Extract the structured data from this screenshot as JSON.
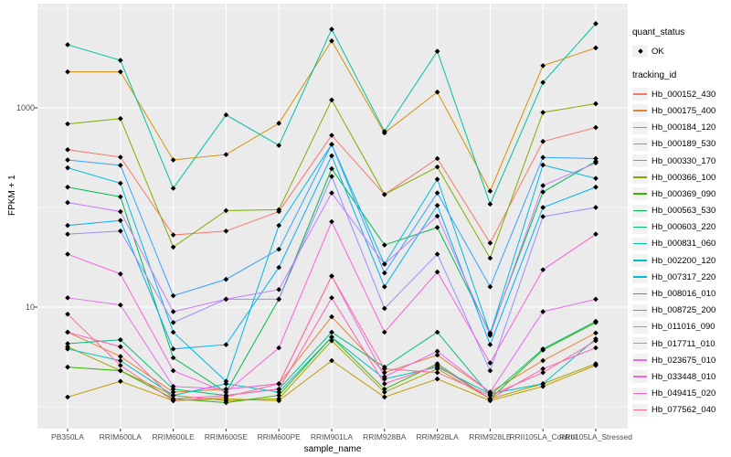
{
  "figure": {
    "background": "#ffffff",
    "panel_background": "#ebebeb",
    "gridline_color": "#ffffff",
    "point_color": "#000000"
  },
  "legend": {
    "quant_status_title": "quant_status",
    "quant_status_items": [
      {
        "label": "OK",
        "symbol": "point"
      }
    ],
    "tracking_title": "tracking_id"
  },
  "chart_data": {
    "type": "line",
    "title": "",
    "xlabel": "sample_name",
    "ylabel": "FPKM + 1",
    "y_scale": "log10",
    "grid": "on",
    "legend_position": "right",
    "y_ticks": [
      {
        "label": "10",
        "value": 10
      },
      {
        "label": "1000",
        "value": 1000
      }
    ],
    "y_minor_gridlines": [
      1,
      100,
      10000
    ],
    "ylim": [
      0.5,
      11000
    ],
    "categories": [
      "PB350LA",
      "RRIM600LA",
      "RRIM600LE",
      "RRIM600SE",
      "RRIM600PE",
      "RRIM901LA",
      "RRIM928BA",
      "RRIM928LA",
      "RRIM928LE",
      "RRII105LA_Control",
      "RRII105LA_Stressed"
    ],
    "series": [
      {
        "name": "Hb_000152_430",
        "color": "#F8766D",
        "values": [
          380,
          320,
          53,
          58,
          91,
          530,
          135,
          310,
          44,
          460,
          635
        ]
      },
      {
        "name": "Hb_000175_400",
        "color": "#EA8331",
        "values": [
          5.6,
          3.2,
          1.4,
          1.5,
          1.7,
          8.0,
          2.2,
          3.3,
          1.4,
          2.9,
          5.5
        ]
      },
      {
        "name": "Hb_000184_120",
        "color": "#D89000",
        "values": [
          2300,
          2300,
          300,
          340,
          700,
          4700,
          560,
          1440,
          146,
          2650,
          4000
        ]
      },
      {
        "name": "Hb_000189_530",
        "color": "#C09B00",
        "values": [
          1.25,
          1.8,
          1.15,
          1.2,
          1.15,
          2.9,
          1.25,
          1.9,
          1.15,
          1.6,
          2.6
        ]
      },
      {
        "name": "Hb_000330_170",
        "color": "#A3A500",
        "values": [
          4.0,
          2.3,
          1.3,
          1.15,
          1.2,
          4.6,
          1.4,
          2.4,
          1.2,
          1.7,
          2.7
        ]
      },
      {
        "name": "Hb_000366_100",
        "color": "#7CAE00",
        "values": [
          690,
          780,
          40,
          93,
          95,
          1200,
          135,
          255,
          31,
          900,
          1100
        ]
      },
      {
        "name": "Hb_000369_090",
        "color": "#39B600",
        "values": [
          2.5,
          2.3,
          1.2,
          1.1,
          1.3,
          5.0,
          1.5,
          2.7,
          1.2,
          3.7,
          7.0
        ]
      },
      {
        "name": "Hb_000563_530",
        "color": "#00BB4E",
        "values": [
          160,
          128,
          3.1,
          1.4,
          12,
          245,
          42,
          63,
          5.5,
          143,
          290
        ]
      },
      {
        "name": "Hb_000603_220",
        "color": "#00BF7D",
        "values": [
          4.3,
          4.7,
          1.5,
          1.3,
          1.5,
          5.6,
          2.5,
          5.6,
          1.3,
          3.8,
          7.2
        ]
      },
      {
        "name": "Hb_000831_060",
        "color": "#00C1A3",
        "values": [
          4300,
          3000,
          156,
          850,
          420,
          6150,
          580,
          3700,
          108,
          1800,
          7000
        ]
      },
      {
        "name": "Hb_002200_120",
        "color": "#00BFC4",
        "values": [
          3.8,
          2.9,
          1.3,
          1.7,
          1.4,
          5.0,
          1.9,
          2.5,
          1.35,
          1.7,
          4.8
        ]
      },
      {
        "name": "Hb_007317_220",
        "color": "#00BAE0",
        "values": [
          250,
          175,
          5.6,
          1.8,
          66,
          430,
          27,
          192,
          5.4,
          267,
          196
        ]
      },
      {
        "name": "Hb_008016_010",
        "color": "#00B0F6",
        "values": [
          66,
          74,
          3.8,
          4.2,
          25,
          330,
          16,
          105,
          4.2,
          100,
          160
        ]
      },
      {
        "name": "Hb_008725_200",
        "color": "#35A2FF",
        "values": [
          300,
          265,
          13,
          19,
          38,
          430,
          22,
          140,
          16,
          318,
          310
        ]
      },
      {
        "name": "Hb_011016_090",
        "color": "#9590FF",
        "values": [
          54,
          58,
          7.0,
          12,
          12,
          205,
          9.7,
          34,
          2.3,
          81,
          100
        ]
      },
      {
        "name": "Hb_017711_010",
        "color": "#C77CFF",
        "values": [
          112,
          91,
          9.0,
          12,
          15,
          140,
          27,
          82,
          5.2,
          166,
          280
        ]
      },
      {
        "name": "Hb_023675_010",
        "color": "#E76BF3",
        "values": [
          12.4,
          10.5,
          1.6,
          1.5,
          1.7,
          20.5,
          2.0,
          3.6,
          1.4,
          9.0,
          12.0
        ]
      },
      {
        "name": "Hb_033448_010",
        "color": "#FA62DB",
        "values": [
          34,
          21.5,
          2.3,
          1.4,
          3.9,
          72,
          5.6,
          22.5,
          2.75,
          23.7,
          54
        ]
      },
      {
        "name": "Hb_049415_020",
        "color": "#FF62BC",
        "values": [
          5.6,
          4.0,
          1.2,
          1.3,
          1.5,
          12.4,
          1.7,
          2.6,
          1.2,
          2.4,
          3.9
        ]
      },
      {
        "name": "Hb_077562_040",
        "color": "#FF6A98",
        "values": [
          8.5,
          2.6,
          1.15,
          1.25,
          1.7,
          20.5,
          2.4,
          2.2,
          1.3,
          2.2,
          4.6
        ]
      }
    ]
  }
}
